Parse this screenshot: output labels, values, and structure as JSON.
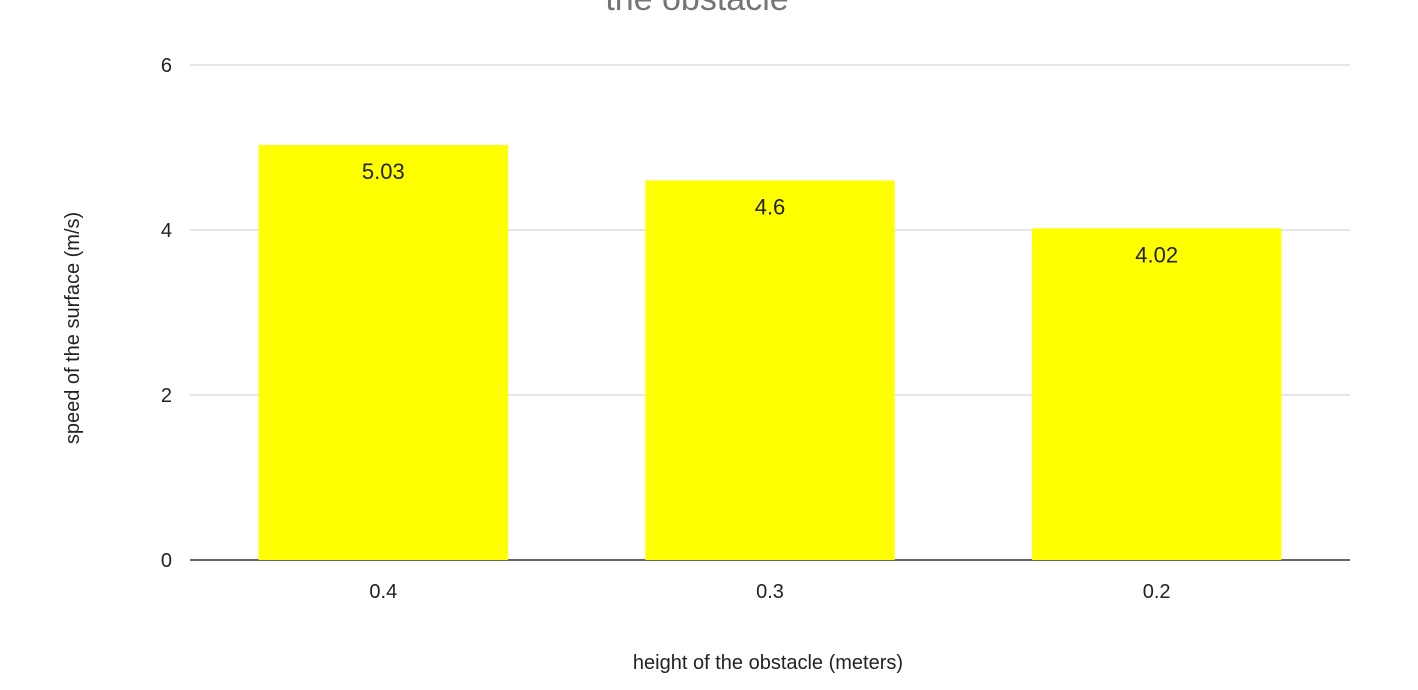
{
  "chart_data": {
    "type": "bar",
    "title": "the obstacle",
    "xlabel": "height of the obstacle (meters)",
    "ylabel": "speed of the surface (m/s)",
    "categories": [
      "0.4",
      "0.3",
      "0.2"
    ],
    "series": [
      {
        "values": [
          5.03,
          4.6,
          4.02
        ],
        "color": "#ffff00",
        "data_labels": [
          "5.03",
          "4.6",
          "4.02"
        ]
      }
    ],
    "ylim": [
      0,
      6
    ],
    "yticks": [
      0,
      2,
      4,
      6
    ],
    "ytick_labels": [
      "0",
      "2",
      "4",
      "6"
    ],
    "grid": true,
    "grid_color": "#cccccc",
    "baseline_color": "#333333",
    "legend": "none"
  }
}
